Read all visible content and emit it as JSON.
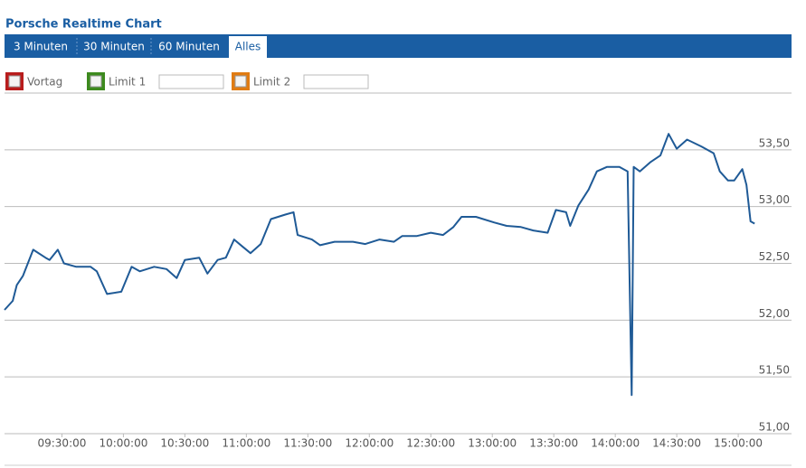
{
  "header": {
    "title": "Porsche Realtime Chart"
  },
  "tabs": [
    {
      "label": "3 Minuten"
    },
    {
      "label": "30 Minuten"
    },
    {
      "label": "60 Minuten"
    },
    {
      "label": "Alles",
      "active": true
    }
  ],
  "controls": [
    {
      "label": "Vortag",
      "color": "#b81c1c"
    },
    {
      "label": "Limit 1",
      "color": "#3d8a1e",
      "input": true
    },
    {
      "label": "Limit 2",
      "color": "#e07b12",
      "input": true
    }
  ],
  "chart_data": {
    "type": "line",
    "color": "#1f5a96",
    "grid": true,
    "x": [
      "09:02",
      "09:06",
      "09:08",
      "09:11",
      "09:16",
      "09:22",
      "09:24",
      "09:28",
      "09:31",
      "09:37",
      "09:44",
      "09:47",
      "09:52",
      "09:59",
      "10:04",
      "10:08",
      "10:15",
      "10:21",
      "10:26",
      "10:30",
      "10:37",
      "10:41",
      "10:46",
      "10:50",
      "10:54",
      "10:58",
      "11:02",
      "11:07",
      "11:12",
      "11:19",
      "11:23",
      "11:25",
      "11:32",
      "11:36",
      "11:43",
      "11:52",
      "11:58",
      "12:05",
      "12:12",
      "12:16",
      "12:23",
      "12:30",
      "12:36",
      "12:41",
      "12:45",
      "12:52",
      "13:01",
      "13:07",
      "13:14",
      "13:20",
      "13:27",
      "13:31",
      "13:36",
      "13:38",
      "13:42",
      "13:47",
      "13:51",
      "13:56",
      "14:02",
      "14:06",
      "14:08",
      "14:09",
      "14:12",
      "14:17",
      "14:22",
      "14:26",
      "14:30",
      "14:35",
      "14:42",
      "14:48",
      "14:51",
      "14:55",
      "14:58",
      "15:02",
      "15:04",
      "15:06",
      "15:08"
    ],
    "values": [
      52.09,
      52.17,
      52.31,
      52.39,
      52.62,
      52.55,
      52.53,
      52.62,
      52.5,
      52.47,
      52.47,
      52.43,
      52.23,
      52.25,
      52.47,
      52.43,
      52.47,
      52.45,
      52.37,
      52.53,
      52.55,
      52.41,
      52.53,
      52.55,
      52.71,
      52.65,
      52.59,
      52.67,
      52.89,
      52.93,
      52.95,
      52.75,
      52.71,
      52.66,
      52.69,
      52.69,
      52.67,
      52.71,
      52.69,
      52.74,
      52.74,
      52.77,
      52.75,
      52.82,
      52.91,
      52.91,
      52.86,
      52.83,
      52.82,
      52.79,
      52.77,
      52.97,
      52.95,
      52.83,
      53.01,
      53.15,
      53.31,
      53.35,
      53.35,
      53.31,
      51.34,
      53.35,
      53.31,
      53.39,
      53.45,
      53.64,
      53.51,
      53.59,
      53.53,
      53.47,
      53.31,
      53.23,
      53.23,
      53.33,
      53.19,
      52.87,
      52.85
    ],
    "xlim": [
      "09:02:00",
      "15:26:00"
    ],
    "xticks": [
      "09:30:00",
      "10:00:00",
      "10:30:00",
      "11:00:00",
      "11:30:00",
      "12:00:00",
      "12:30:00",
      "13:00:00",
      "13:30:00",
      "14:00:00",
      "14:30:00",
      "15:00:00"
    ],
    "ylim": [
      51,
      54
    ],
    "yticks": [
      {
        "value": 51,
        "label": "51,00"
      },
      {
        "value": 51.5,
        "label": "51,50"
      },
      {
        "value": 52,
        "label": "52,00"
      },
      {
        "value": 52.5,
        "label": "52,50"
      },
      {
        "value": 53,
        "label": "53,00"
      },
      {
        "value": 53.5,
        "label": "53,50"
      }
    ]
  }
}
